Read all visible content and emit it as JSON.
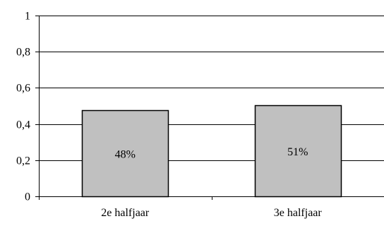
{
  "chart_data": {
    "type": "bar",
    "categories": [
      "2e halfjaar",
      "3e halfjaar"
    ],
    "values": [
      0.475,
      0.505
    ],
    "data_labels": [
      "48%",
      "51%"
    ],
    "y_ticks": [
      0,
      0.2,
      0.4,
      0.6,
      0.8,
      1
    ],
    "y_tick_labels": [
      "0",
      "0,2",
      "0,4",
      "0,6",
      "0,8",
      "1"
    ],
    "ylim": [
      0,
      1
    ],
    "grid": true,
    "legend": "none",
    "bar_color": "#c0c0c0",
    "bar_edge_color": "#000000",
    "grid_color": "#000000"
  }
}
